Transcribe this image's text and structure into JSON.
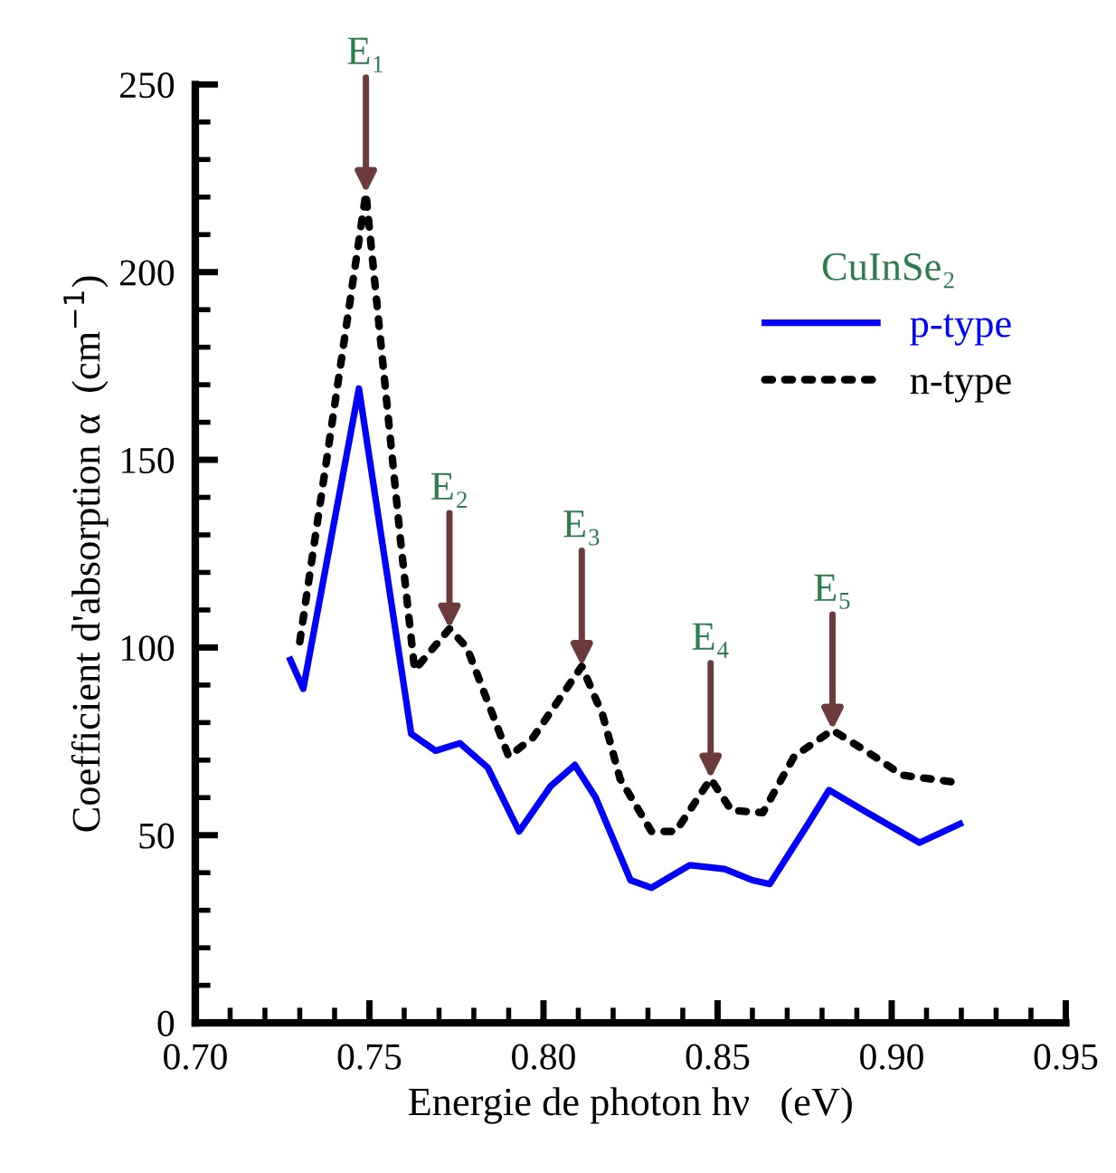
{
  "chart_data": {
    "type": "line",
    "xlabel": "Energie de photon hν   (eV)",
    "ylabel": "Coefficient d'absorption α  (cm$^{−1}$)",
    "legend_title": "CuInSe₂",
    "legend": "top right",
    "grid": false,
    "xlim": [
      0.7,
      0.95
    ],
    "xticks": [
      {
        "value": 0.7,
        "label": "0.70"
      },
      {
        "value": 0.75,
        "label": "0.75"
      },
      {
        "value": 0.8,
        "label": "0.80"
      },
      {
        "value": 0.85,
        "label": "0.85"
      },
      {
        "value": 0.9,
        "label": "0.90"
      },
      {
        "value": 0.95,
        "label": "0.95"
      }
    ],
    "ylim": [
      0,
      250
    ],
    "yticks": [
      0,
      50,
      100,
      150,
      200,
      250
    ],
    "series": [
      {
        "name": "p-type",
        "color": "#0000ff",
        "line_style": "solid",
        "x": [
          0.7273,
          0.731,
          0.747,
          0.762,
          0.769,
          0.776,
          0.784,
          0.793,
          0.802,
          0.809,
          0.815,
          0.825,
          0.831,
          0.842,
          0.852,
          0.86,
          0.865,
          0.876,
          0.882,
          0.893,
          0.908,
          0.9196
        ],
        "values": [
          96.7,
          89,
          169,
          77,
          72.5,
          74.5,
          68,
          51,
          63,
          68.7,
          60,
          38,
          36,
          42,
          41,
          38,
          37,
          53,
          62,
          56,
          48,
          53
        ]
      },
      {
        "name": "n-type",
        "color": "#000000",
        "line_style": "dotted",
        "x": [
          0.73,
          0.749,
          0.759,
          0.763,
          0.773,
          0.778,
          0.79,
          0.797,
          0.811,
          0.817,
          0.822,
          0.831,
          0.838,
          0.848,
          0.854,
          0.863,
          0.872,
          0.883,
          0.895,
          0.903,
          0.919,
          0.92
        ],
        "values": [
          101.5,
          221,
          128,
          94,
          105,
          100,
          71,
          76,
          95,
          82,
          65,
          51,
          51,
          65,
          56.6,
          56,
          71,
          78,
          71,
          66,
          64,
          64
        ]
      }
    ],
    "annotations": [
      {
        "text": "E₁",
        "x": 0.749,
        "y": 221
      },
      {
        "text": "E₂",
        "x": 0.773,
        "y": 105
      },
      {
        "text": "E₃",
        "x": 0.811,
        "y": 95
      },
      {
        "text": "E₄",
        "x": 0.848,
        "y": 65
      },
      {
        "text": "E₅",
        "x": 0.883,
        "y": 78
      }
    ]
  }
}
